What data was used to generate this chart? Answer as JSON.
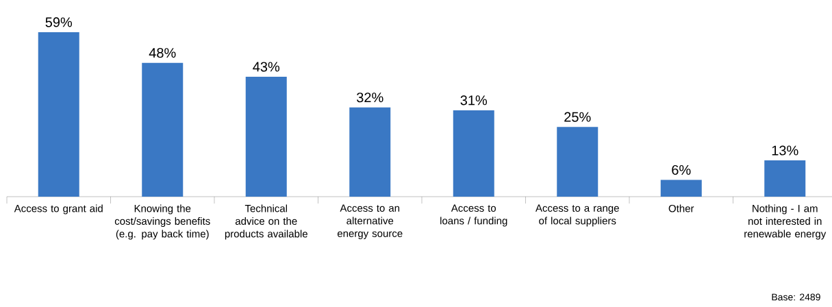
{
  "chart_data": {
    "type": "bar",
    "categories": [
      "Access to grant aid",
      "Knowing the cost/savings benefits (e.g. pay back time)",
      "Technical advice on the products available",
      "Access to an alternative energy source",
      "Access to loans / funding",
      "Access to a range of local suppliers",
      "Other",
      "Nothing - I am not interested in renewable energy"
    ],
    "values": [
      59,
      48,
      43,
      32,
      31,
      25,
      6,
      13
    ],
    "value_labels": [
      "59%",
      "48%",
      "43%",
      "32%",
      "31%",
      "25%",
      "6%",
      "13%"
    ],
    "color": "#3a78c4",
    "annotations": [
      "Base: 2489"
    ]
  }
}
